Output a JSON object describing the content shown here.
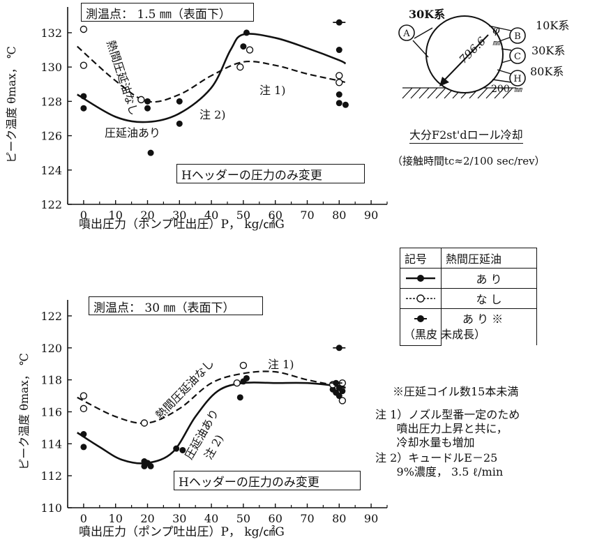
{
  "chart_data": [
    {
      "type": "scatter",
      "title": "測温点： 1.5 ㎜（表面下）",
      "box_label": "Hヘッダーの圧力のみ変更",
      "xlabel": "噴出圧力（ポンプ吐出圧）P， kg/㎠G",
      "ylabel": "ピーク温度 θmax， ℃",
      "xlim": [
        -5,
        95
      ],
      "ylim": [
        122,
        133.5
      ],
      "xticks": [
        0,
        10,
        20,
        30,
        40,
        50,
        60,
        70,
        80,
        90
      ],
      "yticks": [
        122,
        124,
        126,
        128,
        130,
        132
      ],
      "annotations": [
        "熱間圧延油なし",
        "注 1)",
        "注 2)",
        "圧延油あり"
      ],
      "series": [
        {
          "name": "熱間圧延油 あり",
          "marker": "filled",
          "points": [
            [
              0,
              128.3
            ],
            [
              0,
              127.6
            ],
            [
              20,
              128.0
            ],
            [
              20,
              127.6
            ],
            [
              21,
              125.0
            ],
            [
              30,
              128.0
            ],
            [
              30,
              126.7
            ],
            [
              50,
              131.2
            ],
            [
              51,
              132.0
            ],
            [
              80,
              131.0
            ],
            [
              80,
              128.4
            ],
            [
              80,
              127.9
            ],
            [
              82,
              127.8
            ]
          ],
          "curve": [
            [
              -2,
              128.4
            ],
            [
              10,
              127.1
            ],
            [
              20,
              126.8
            ],
            [
              30,
              127.3
            ],
            [
              40,
              128.8
            ],
            [
              46,
              131.0
            ],
            [
              50,
              131.9
            ],
            [
              60,
              131.7
            ],
            [
              70,
              131.1
            ],
            [
              80,
              130.4
            ],
            [
              82,
              130.2
            ]
          ]
        },
        {
          "name": "熱間圧延油 なし",
          "marker": "open",
          "points": [
            [
              0,
              132.2
            ],
            [
              0,
              130.1
            ],
            [
              18,
              128.1
            ],
            [
              49,
              130.0
            ],
            [
              52,
              131.0
            ],
            [
              80,
              129.5
            ],
            [
              80,
              129.1
            ]
          ],
          "curve": [
            [
              -2,
              131.2
            ],
            [
              10,
              129.2
            ],
            [
              20,
              128.0
            ],
            [
              30,
              128.4
            ],
            [
              40,
              129.5
            ],
            [
              50,
              130.3
            ],
            [
              60,
              130.1
            ],
            [
              70,
              129.6
            ],
            [
              80,
              129.2
            ],
            [
              82,
              129.1
            ]
          ]
        },
        {
          "name": "あり※（黒皮 未成長）",
          "marker": "filled-dash",
          "points": [
            [
              80,
              132.6
            ]
          ]
        }
      ]
    },
    {
      "type": "scatter",
      "title": "測温点： 30 ㎜（表面下）",
      "box_label": "Hヘッダーの圧力のみ変更",
      "xlabel": "噴出圧力（ポンプ吐出圧）P， kg/㎠G",
      "ylabel": "ピーク温度 θmax， ℃",
      "xlim": [
        -5,
        95
      ],
      "ylim": [
        110,
        123
      ],
      "xticks": [
        0,
        10,
        20,
        30,
        40,
        50,
        60,
        70,
        80,
        90
      ],
      "yticks": [
        110,
        112,
        114,
        116,
        118,
        120,
        122
      ],
      "annotations": [
        "熱間圧延油なし",
        "注 1)",
        "圧延油あり",
        "注 2)"
      ],
      "series": [
        {
          "name": "熱間圧延油 あり",
          "marker": "filled",
          "points": [
            [
              0,
              114.6
            ],
            [
              0,
              113.8
            ],
            [
              19,
              112.9
            ],
            [
              19,
              112.6
            ],
            [
              20,
              112.8
            ],
            [
              21,
              112.6
            ],
            [
              29,
              113.7
            ],
            [
              31,
              113.6
            ],
            [
              49,
              116.9
            ],
            [
              50,
              117.9
            ],
            [
              51,
              118.1
            ],
            [
              78,
              117.4
            ],
            [
              79,
              117.2
            ],
            [
              80,
              117.5
            ],
            [
              81,
              117.3
            ],
            [
              80,
              117.0
            ]
          ],
          "curve": [
            [
              -2,
              114.7
            ],
            [
              5,
              113.8
            ],
            [
              12,
              113.0
            ],
            [
              20,
              112.8
            ],
            [
              28,
              113.5
            ],
            [
              35,
              115.7
            ],
            [
              42,
              117.3
            ],
            [
              50,
              117.8
            ],
            [
              60,
              117.8
            ],
            [
              70,
              117.8
            ],
            [
              80,
              117.6
            ],
            [
              82,
              117.5
            ]
          ]
        },
        {
          "name": "熱間圧延油 なし",
          "marker": "open",
          "points": [
            [
              0,
              117.0
            ],
            [
              0,
              116.2
            ],
            [
              19,
              115.3
            ],
            [
              48,
              117.8
            ],
            [
              50,
              118.9
            ],
            [
              78,
              117.7
            ],
            [
              81,
              117.8
            ],
            [
              81,
              116.7
            ]
          ],
          "curve": [
            [
              -2,
              116.9
            ],
            [
              10,
              115.7
            ],
            [
              20,
              115.3
            ],
            [
              30,
              116.2
            ],
            [
              40,
              117.8
            ],
            [
              50,
              118.4
            ],
            [
              60,
              118.5
            ],
            [
              70,
              118.0
            ],
            [
              80,
              117.6
            ],
            [
              82,
              117.5
            ]
          ]
        },
        {
          "name": "あり※（黒皮 未成長）",
          "marker": "filled-dash",
          "points": [
            [
              80,
              120.0
            ],
            [
              79,
              117.8
            ]
          ]
        }
      ]
    }
  ],
  "diagram": {
    "labels": {
      "a_label": "30K系",
      "b_label": "10K系",
      "c_label": "30K系",
      "h_label": "80K系",
      "a": "A",
      "b": "B",
      "c": "C",
      "h": "H",
      "diameter": "796.6",
      "phi": "φ",
      "mm1": "㎜",
      "dist": "200",
      "mm2": "㎜"
    },
    "caption": "大分F2st'dロール冷却",
    "subcaption": "（接触時間tc≈2/100 sec/rev）"
  },
  "legend": {
    "header_symbol": "記号",
    "header_oil": "熱間圧延油",
    "row1": "あ り",
    "row2": "な し",
    "row3": "あ り ※",
    "row3_sub": "（黒皮 未成長）"
  },
  "notes": {
    "asterisk_note": "※圧延コイル数15本未満",
    "note1": "注 1）ノズル型番一定のため\n      噴出圧力上昇と共に，\n      冷却水量も増加",
    "note2": "注 2）キュードルE－25\n      9%濃度， 3.5 ℓ/min"
  },
  "colors": {
    "ink": "#111111",
    "background": "#ffffff"
  }
}
